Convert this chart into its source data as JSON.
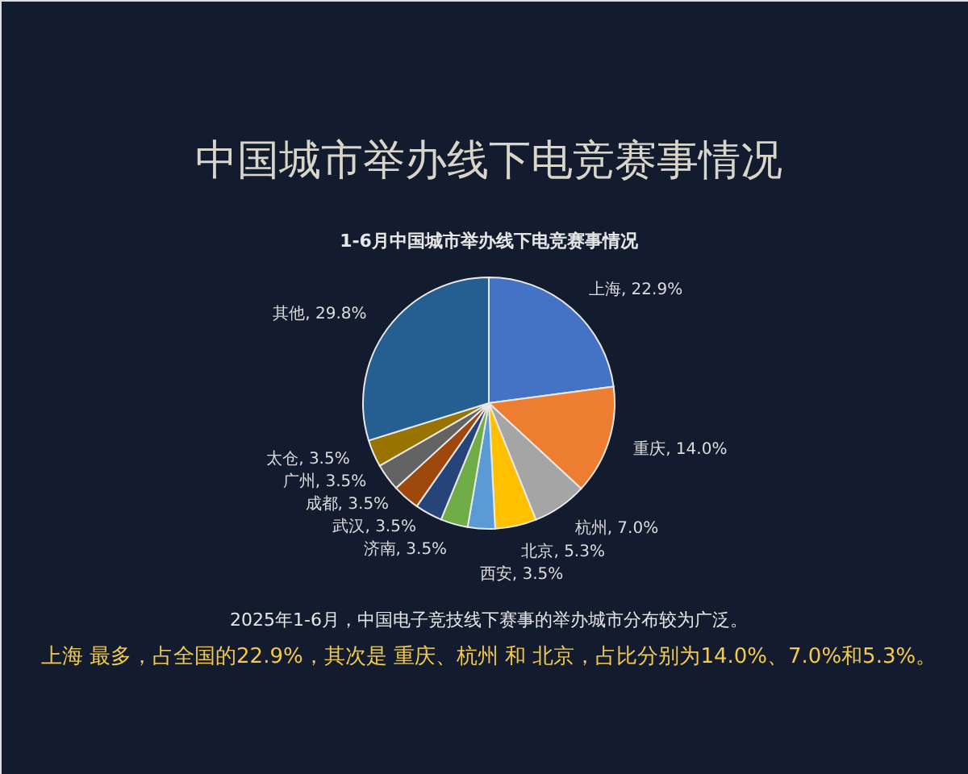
{
  "chart_data": {
    "type": "pie",
    "title": "中国城市举办线下电竞赛事情况",
    "subtitle": "1-6月中国城市举办线下电竞赛事情况",
    "categories": [
      "上海",
      "重庆",
      "杭州",
      "北京",
      "西安",
      "济南",
      "武汉",
      "成都",
      "广州",
      "太仓",
      "其他"
    ],
    "values": [
      22.9,
      14.0,
      7.0,
      5.3,
      3.5,
      3.5,
      3.5,
      3.5,
      3.5,
      3.5,
      29.8
    ],
    "value_labels": [
      "22.9%",
      "14.0%",
      "7.0%",
      "5.3%",
      "3.5%",
      "3.5%",
      "3.5%",
      "3.5%",
      "3.5%",
      "3.5%",
      "29.8%"
    ],
    "colors": [
      "#4472c4",
      "#ed7d31",
      "#a5a5a5",
      "#ffc000",
      "#5b9bd5",
      "#70ad47",
      "#264478",
      "#9e480e",
      "#636363",
      "#997300",
      "#255e91"
    ],
    "legend": false,
    "annotations": [
      "2025年1-6月，中国电子竞技线下赛事的举办城市分布较为广泛。",
      "上海 最多，占全国的22.9%，其次是 重庆、杭州 和 北京，占比分别为14.0%、7.0%和5.3%。"
    ]
  }
}
